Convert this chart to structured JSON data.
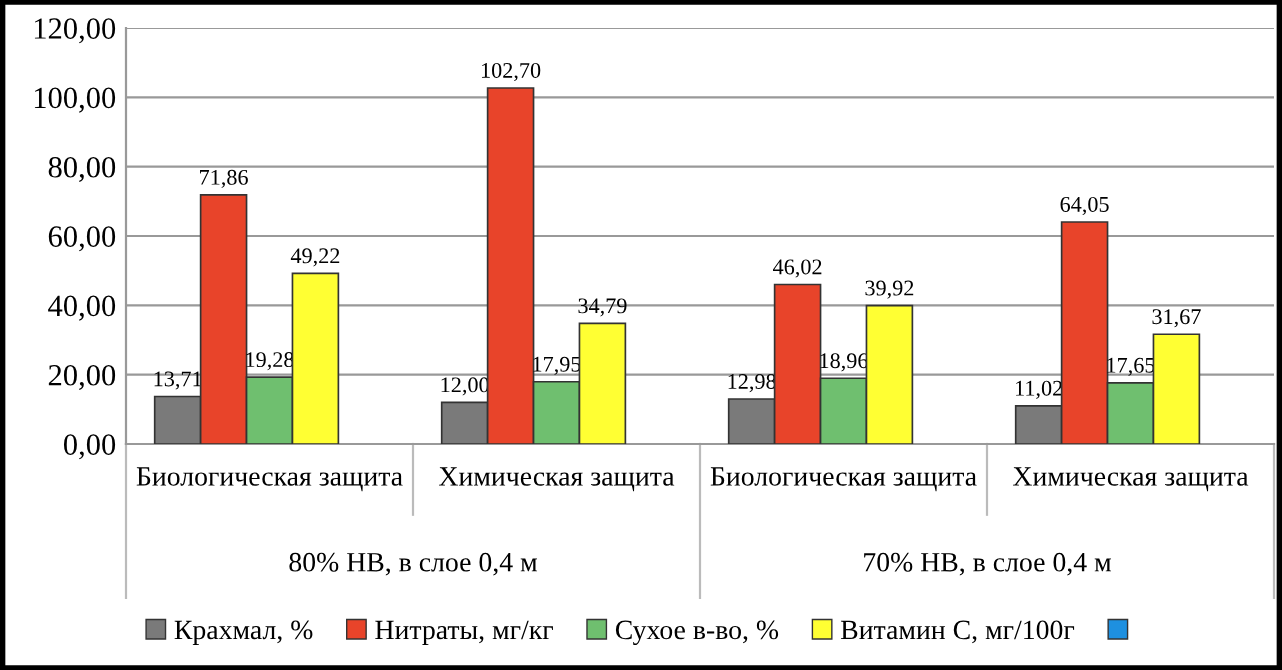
{
  "chart_data": {
    "type": "bar",
    "categories": [
      "Биологическая защита",
      "Химическая защита",
      "Биологическая защита",
      "Химическая защита"
    ],
    "annotations": [
      "80% НВ, в слое 0,4 м",
      "70% НВ, в слое 0,4 м"
    ],
    "series": [
      {
        "name": "Крахмал, %",
        "color": "#7a7a7a",
        "values": [
          13.71,
          12.0,
          12.98,
          11.02
        ],
        "value_labels": [
          "13,71",
          "12,00",
          "12,98",
          "11,02"
        ]
      },
      {
        "name": "Нитраты, мг/кг",
        "color": "#e8442a",
        "values": [
          71.86,
          102.7,
          46.02,
          64.05
        ],
        "value_labels": [
          "71,86",
          "102,70",
          "46,02",
          "64,05"
        ]
      },
      {
        "name": "Сухое в-во, %",
        "color": "#6fbf6f",
        "values": [
          19.28,
          17.95,
          18.96,
          17.65
        ],
        "value_labels": [
          "19,28",
          "17,95",
          "18,96",
          "17,65"
        ]
      },
      {
        "name": "Витамин С, мг/100г",
        "color": "#ffff33",
        "values": [
          49.22,
          34.79,
          39.92,
          31.67
        ],
        "value_labels": [
          "49,22",
          "34,79",
          "39,92",
          "31,67"
        ]
      },
      {
        "color": "#1e90e0",
        "values": [
          null,
          null,
          null,
          null
        ]
      }
    ],
    "ylim": [
      0,
      120
    ],
    "yticks": [
      {
        "value": 0,
        "label": "0,00"
      },
      {
        "value": 20,
        "label": "20,00"
      },
      {
        "value": 40,
        "label": "40,00"
      },
      {
        "value": 60,
        "label": "60,00"
      },
      {
        "value": 80,
        "label": "80,00"
      },
      {
        "value": 100,
        "label": "100,00"
      },
      {
        "value": 120,
        "label": "120,00"
      }
    ],
    "grid": "y",
    "legend": "bottom"
  }
}
